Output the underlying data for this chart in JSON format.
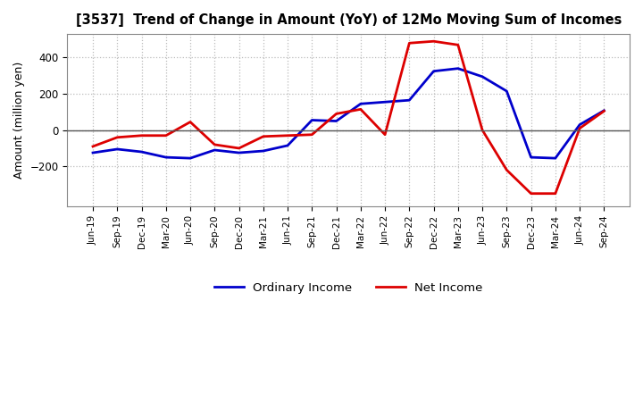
{
  "title": "[3537]  Trend of Change in Amount (YoY) of 12Mo Moving Sum of Incomes",
  "ylabel": "Amount (million yen)",
  "ylim": [
    -420,
    530
  ],
  "yticks": [
    -200,
    0,
    200,
    400
  ],
  "background_color": "#ffffff",
  "plot_bg_color": "#ffffff",
  "grid_color": "#bbbbbb",
  "ordinary_income_color": "#0000cc",
  "net_income_color": "#dd0000",
  "labels": [
    "Jun-19",
    "Sep-19",
    "Dec-19",
    "Mar-20",
    "Jun-20",
    "Sep-20",
    "Dec-20",
    "Mar-21",
    "Jun-21",
    "Sep-21",
    "Dec-21",
    "Mar-22",
    "Jun-22",
    "Sep-22",
    "Dec-22",
    "Mar-23",
    "Jun-23",
    "Sep-23",
    "Dec-23",
    "Mar-24",
    "Jun-24",
    "Sep-24"
  ],
  "ordinary_income": [
    -125,
    -105,
    -120,
    -150,
    -155,
    -110,
    -125,
    -115,
    -85,
    55,
    50,
    145,
    155,
    165,
    325,
    340,
    295,
    215,
    -150,
    -155,
    30,
    108
  ],
  "net_income": [
    -90,
    -40,
    -30,
    -30,
    45,
    -80,
    -100,
    -35,
    -30,
    -25,
    90,
    115,
    -25,
    480,
    490,
    470,
    0,
    -220,
    -350,
    -350,
    10,
    105
  ],
  "legend_ordinary": "Ordinary Income",
  "legend_net": "Net Income"
}
